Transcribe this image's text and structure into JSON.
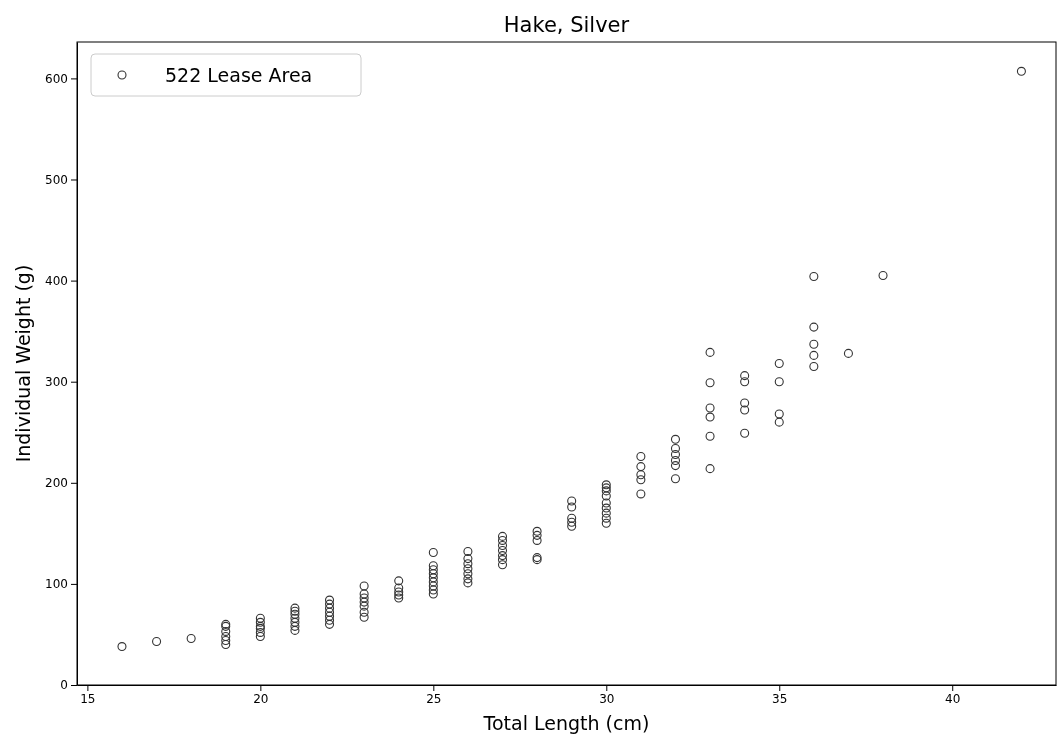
{
  "chart_data": {
    "type": "scatter",
    "title": "Hake, Silver",
    "xlabel": "Total Length (cm)",
    "ylabel": "Individual Weight (g)",
    "xlim": [
      14.7,
      43.0
    ],
    "ylim": [
      0,
      636
    ],
    "xticks": [
      15,
      20,
      25,
      30,
      35,
      40
    ],
    "yticks": [
      0,
      100,
      200,
      300,
      400,
      500,
      600
    ],
    "grid": false,
    "legend": "top left",
    "marker": "circle",
    "series": [
      {
        "name": "522 Lease Area",
        "color": "#333333",
        "x": [
          16,
          17,
          18,
          19,
          19,
          19,
          19,
          19,
          19,
          20,
          20,
          20,
          20,
          20,
          20,
          21,
          21,
          21,
          21,
          21,
          21,
          21,
          22,
          22,
          22,
          22,
          22,
          22,
          22,
          23,
          23,
          23,
          23,
          23,
          23,
          23,
          24,
          24,
          24,
          24,
          24,
          25,
          25,
          25,
          25,
          25,
          25,
          25,
          25,
          25,
          26,
          26,
          26,
          26,
          26,
          26,
          26,
          27,
          27,
          27,
          27,
          27,
          27,
          27,
          28,
          28,
          28,
          28,
          28,
          29,
          29,
          29,
          29,
          29,
          30,
          30,
          30,
          30,
          30,
          30,
          30,
          30,
          30,
          31,
          31,
          31,
          31,
          31,
          32,
          32,
          32,
          32,
          32,
          32,
          33,
          33,
          33,
          33,
          33,
          33,
          34,
          34,
          34,
          34,
          34,
          35,
          35,
          35,
          35,
          36,
          36,
          36,
          36,
          36,
          37,
          38,
          42
        ],
        "values": [
          38,
          43,
          46,
          40,
          44,
          48,
          53,
          58,
          60,
          48,
          52,
          56,
          58,
          62,
          66,
          54,
          58,
          62,
          66,
          70,
          73,
          76,
          60,
          64,
          68,
          72,
          76,
          80,
          84,
          67,
          72,
          78,
          82,
          86,
          90,
          98,
          86,
          89,
          92,
          96,
          103,
          90,
          94,
          98,
          102,
          106,
          110,
          114,
          118,
          131,
          101,
          105,
          110,
          115,
          120,
          125,
          132,
          119,
          124,
          128,
          133,
          138,
          143,
          147,
          124,
          126,
          143,
          148,
          152,
          157,
          161,
          165,
          176,
          182,
          160,
          165,
          170,
          175,
          180,
          187,
          192,
          195,
          198,
          189,
          203,
          208,
          216,
          226,
          204,
          217,
          222,
          228,
          234,
          243,
          214,
          246,
          265,
          274,
          299,
          329,
          249,
          272,
          279,
          300,
          306,
          260,
          268,
          300,
          318,
          315,
          326,
          337,
          354,
          404,
          328,
          405,
          607
        ]
      }
    ]
  }
}
